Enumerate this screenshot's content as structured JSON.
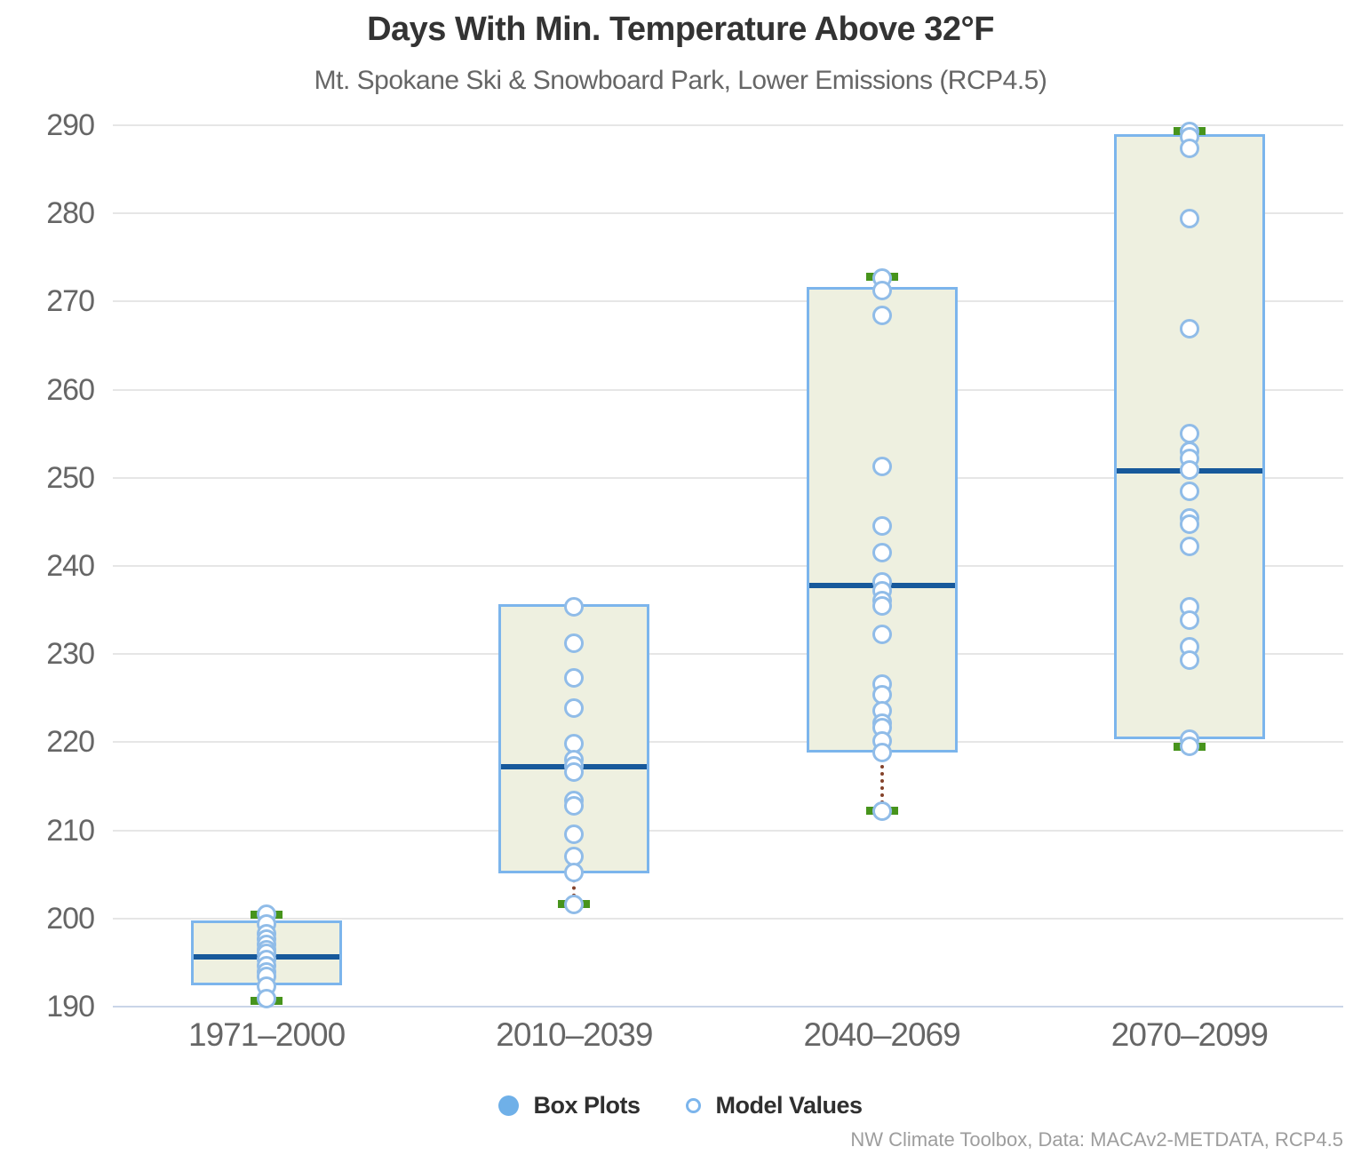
{
  "chart_data": {
    "type": "box",
    "title": "Days With Min. Temperature Above 32°F",
    "subtitle": "Mt. Spokane Ski & Snowboard Park, Lower Emissions (RCP4.5)",
    "categories": [
      "1971–2000",
      "2010–2039",
      "2040–2069",
      "2070–2099"
    ],
    "ylim": [
      190,
      290
    ],
    "yticks": [
      190,
      200,
      210,
      220,
      230,
      240,
      250,
      260,
      270,
      280,
      290
    ],
    "grid": true,
    "legend_position": "bottom",
    "series": [
      {
        "name": "Box Plots",
        "boxes": [
          {
            "low": 190.7,
            "q1": 192.6,
            "median": 195.6,
            "q3": 199.6,
            "high": 200.4
          },
          {
            "low": 201.6,
            "q1": 205.3,
            "median": 217.2,
            "q3": 235.5,
            "high": 235.5
          },
          {
            "low": 212.2,
            "q1": 219.0,
            "median": 237.8,
            "q3": 271.5,
            "high": 272.8
          },
          {
            "low": 219.5,
            "q1": 220.5,
            "median": 250.8,
            "q3": 288.8,
            "high": 289.3
          }
        ]
      },
      {
        "name": "Model Values",
        "points": [
          [
            200.5,
            199.4,
            198.3,
            197.7,
            197.1,
            196.5,
            196.0,
            195.3,
            194.6,
            193.9,
            193.4,
            192.3,
            190.9
          ],
          [
            235.4,
            231.2,
            227.3,
            223.9,
            219.8,
            218.0,
            217.3,
            216.6,
            213.4,
            212.8,
            209.6,
            207.0,
            205.2,
            201.6
          ],
          [
            272.7,
            271.3,
            268.4,
            251.3,
            244.5,
            241.5,
            238.2,
            237.2,
            236.1,
            235.5,
            232.2,
            226.6,
            225.4,
            223.6,
            222.2,
            221.7,
            220.1,
            218.8,
            212.2
          ],
          [
            289.3,
            288.7,
            287.4,
            279.4,
            266.9,
            255.0,
            253.0,
            252.2,
            250.9,
            248.5,
            245.4,
            244.7,
            242.2,
            235.4,
            233.9,
            230.8,
            229.3,
            220.3,
            219.5
          ]
        ]
      }
    ],
    "legend": {
      "items": [
        "Box Plots",
        "Model Values"
      ]
    },
    "colors": {
      "box_fill": "#eef0e0",
      "box_border": "#7cb5ec",
      "median": "#17599b",
      "whisker_cap_green": "#47941c",
      "whisker_dotted_line": "#84422a",
      "point_stroke": "#90bce8",
      "gridline": "#e6e6e6",
      "axis_line": "#c9d5e8",
      "legend_marker_fill": "#6fb0e8",
      "title_color": "#333333",
      "label_color": "#666666",
      "attribution_color": "#9d9d9d"
    }
  },
  "footer": {
    "attribution": "NW Climate Toolbox, Data: MACAv2-METDATA, RCP4.5"
  }
}
